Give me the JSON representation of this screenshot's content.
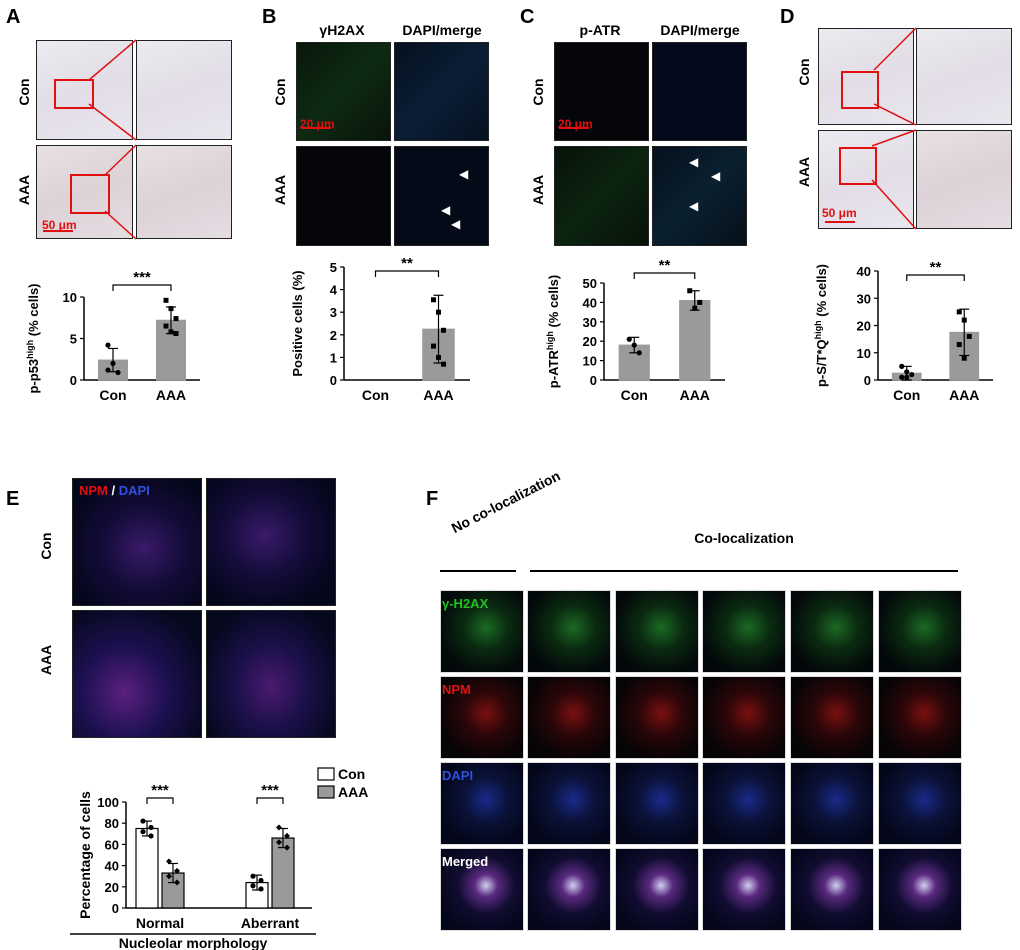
{
  "panels": {
    "A": {
      "label": "A",
      "rows": [
        "Con",
        "AAA"
      ],
      "scale": "50 μm",
      "chart_data": {
        "type": "bar",
        "categories": [
          "Con",
          "AAA"
        ],
        "values": [
          2.4,
          7.2
        ],
        "errors": [
          1.4,
          1.6
        ],
        "points": [
          [
            4.2,
            2.0,
            0.9,
            1.2
          ],
          [
            9.6,
            8.6,
            7.4,
            6.5,
            5.8,
            5.6
          ]
        ],
        "ylabel": "p-p53high (% cells)",
        "ylabel_main": "p-p53",
        "ylabel_sup": "high",
        "ylabel_tail": " (% cells)",
        "ylim": [
          0,
          10
        ],
        "yticks": [
          "0",
          "5",
          "10"
        ],
        "significance": "***"
      }
    },
    "B": {
      "label": "B",
      "cols": [
        "γH2AX",
        "DAPI/merge"
      ],
      "rows": [
        "Con",
        "AAA"
      ],
      "scale": "20 μm",
      "chart_data": {
        "type": "bar",
        "categories": [
          "Con",
          "AAA"
        ],
        "values": [
          0,
          2.25
        ],
        "errors": [
          0,
          1.5
        ],
        "points": [
          [],
          [
            3.55,
            3.0,
            2.2,
            1.5,
            1.0,
            0.7
          ]
        ],
        "ylabel": "Positive cells (%)",
        "ylim": [
          0,
          5
        ],
        "yticks": [
          "0",
          "1",
          "2",
          "3",
          "4",
          "5"
        ],
        "significance": "**"
      }
    },
    "C": {
      "label": "C",
      "cols": [
        "p-ATR",
        "DAPI/merge"
      ],
      "rows": [
        "Con",
        "AAA"
      ],
      "scale": "20 μm",
      "chart_data": {
        "type": "bar",
        "categories": [
          "Con",
          "AAA"
        ],
        "values": [
          18,
          41
        ],
        "errors": [
          4,
          5
        ],
        "points": [
          [
            21,
            18,
            14
          ],
          [
            46,
            37,
            40
          ]
        ],
        "ylabel": "p-ATRhigh (% cells)",
        "ylabel_main": "p-ATR",
        "ylabel_sup": "high",
        "ylabel_tail": " (% cells)",
        "ylim": [
          0,
          50
        ],
        "yticks": [
          "0",
          "10",
          "20",
          "30",
          "40",
          "50"
        ],
        "significance": "**"
      }
    },
    "D": {
      "label": "D",
      "rows": [
        "Con",
        "AAA"
      ],
      "scale": "50 μm",
      "chart_data": {
        "type": "bar",
        "categories": [
          "Con",
          "AAA"
        ],
        "values": [
          2.5,
          17.5
        ],
        "errors": [
          2.5,
          8.5
        ],
        "points": [
          [
            5,
            3,
            2,
            1,
            1
          ],
          [
            25,
            22,
            16,
            13,
            8
          ]
        ],
        "ylabel": "p-S/T*Qhigh (% cells)",
        "ylabel_main": "p-S/T*Q",
        "ylabel_sup": "high",
        "ylabel_tail": " (% cells)",
        "ylim": [
          0,
          40
        ],
        "yticks": [
          "0",
          "10",
          "20",
          "30",
          "40"
        ],
        "significance": "**"
      }
    },
    "E": {
      "label": "E",
      "stain_npm": "NPM",
      "stain_sep": " / ",
      "stain_dapi": "DAPI",
      "rows": [
        "Con",
        "AAA"
      ],
      "chart_data": {
        "type": "bar",
        "categories": [
          "Normal",
          "Aberrant"
        ],
        "series": [
          {
            "name": "Con",
            "values": [
              75,
              24
            ],
            "errors": [
              7,
              7
            ],
            "points": [
              [
                82,
                76,
                72,
                68
              ],
              [
                30,
                26,
                21,
                18
              ]
            ]
          },
          {
            "name": "AAA",
            "values": [
              33,
              66
            ],
            "errors": [
              9,
              9
            ],
            "points": [
              [
                44,
                35,
                30,
                24
              ],
              [
                76,
                68,
                62,
                57
              ]
            ]
          }
        ],
        "ylabel": "Percentage of cells",
        "xlabel": "Nucleolar morphology",
        "ylim": [
          0,
          100
        ],
        "yticks": [
          "0",
          "20",
          "40",
          "60",
          "80",
          "100"
        ],
        "significance": [
          "***",
          "***"
        ],
        "legend": "top-right"
      }
    },
    "F": {
      "label": "F",
      "header_none": "No co-localization",
      "header_co": "Co-localization",
      "rows": [
        "γ-H2AX",
        "NPM",
        "DAPI",
        "Merged"
      ]
    }
  },
  "colors": {
    "bar_gray": "#9a9a9a",
    "red_label": "#e01010",
    "green_label": "#22c022",
    "blue_label": "#3050e0"
  }
}
